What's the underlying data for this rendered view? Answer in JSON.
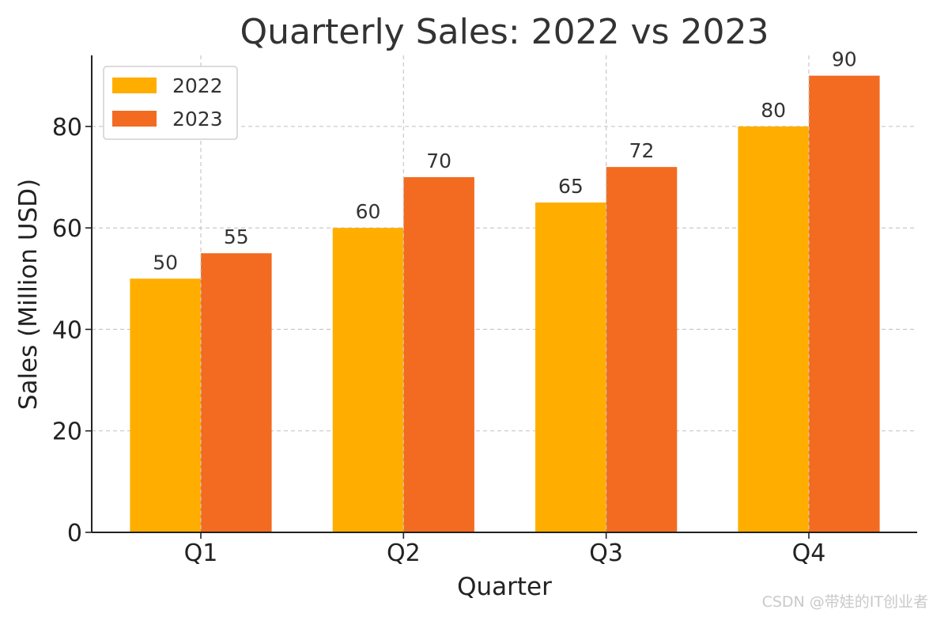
{
  "chart_data": {
    "type": "bar",
    "title": "Quarterly Sales: 2022 vs 2023",
    "xlabel": "Quarter",
    "ylabel": "Sales (Million USD)",
    "categories": [
      "Q1",
      "Q2",
      "Q3",
      "Q4"
    ],
    "series": [
      {
        "name": "2022",
        "values": [
          50,
          60,
          65,
          80
        ],
        "color": "#FFAE00"
      },
      {
        "name": "2023",
        "values": [
          55,
          70,
          72,
          90
        ],
        "color": "#F26B21"
      }
    ],
    "ylim": [
      0,
      94
    ],
    "yticks": [
      0,
      20,
      40,
      60,
      80
    ],
    "grid": true,
    "legend_position": "top-left",
    "data_labels": true
  },
  "watermark": "CSDN @带娃的IT创业者"
}
